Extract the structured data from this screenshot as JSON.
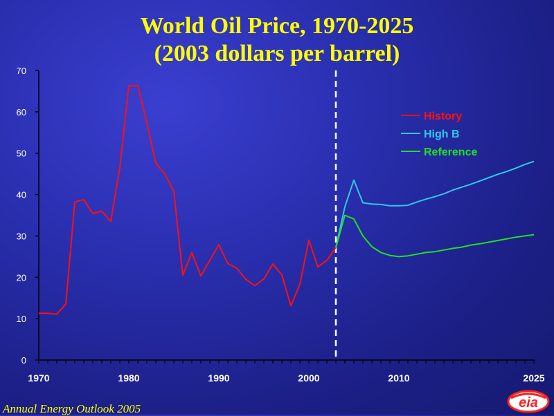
{
  "chart_data": {
    "type": "line",
    "title": "World Oil Price, 1970-2025",
    "subtitle": "(2003 dollars per barrel)",
    "xlabel": "",
    "ylabel": "",
    "xlim": [
      1970,
      2025
    ],
    "ylim": [
      0,
      70
    ],
    "x_ticks": [
      1970,
      1980,
      1990,
      2000,
      2010,
      2025
    ],
    "y_ticks": [
      0,
      10,
      20,
      30,
      40,
      50,
      60,
      70
    ],
    "divider_year": 2003,
    "legend_position": "upper-right",
    "series": [
      {
        "name": "History",
        "color": "#ff1010",
        "x": [
          1970,
          1971,
          1972,
          1973,
          1974,
          1975,
          1976,
          1977,
          1978,
          1979,
          1980,
          1981,
          1982,
          1983,
          1984,
          1985,
          1986,
          1987,
          1988,
          1989,
          1990,
          1991,
          1992,
          1993,
          1994,
          1995,
          1996,
          1997,
          1998,
          1999,
          2000,
          2001,
          2002,
          2003
        ],
        "values": [
          11.3,
          11.3,
          11.1,
          13.5,
          38.2,
          38.8,
          35.4,
          36,
          33.5,
          46.5,
          66.3,
          66.3,
          57.4,
          47.6,
          45,
          40.8,
          20.5,
          26,
          20.3,
          24.1,
          27.9,
          23.3,
          22.2,
          19.5,
          18,
          19.6,
          23.2,
          20.6,
          13.1,
          18.3,
          29,
          22.5,
          24.1,
          27.2
        ]
      },
      {
        "name": "High B",
        "color": "#30c8e8",
        "x": [
          2003,
          2004,
          2005,
          2006,
          2007,
          2008,
          2009,
          2010,
          2011,
          2012,
          2013,
          2014,
          2015,
          2016,
          2017,
          2018,
          2019,
          2020,
          2021,
          2022,
          2023,
          2024,
          2025
        ],
        "values": [
          27.2,
          37,
          43.5,
          38,
          37.7,
          37.6,
          37.3,
          37.3,
          37.4,
          38.2,
          38.9,
          39.5,
          40.2,
          41.1,
          41.8,
          42.5,
          43.3,
          44.1,
          44.9,
          45.6,
          46.4,
          47.3,
          48
        ]
      },
      {
        "name": "Reference",
        "color": "#20e020",
        "x": [
          2003,
          2004,
          2005,
          2006,
          2007,
          2008,
          2009,
          2010,
          2011,
          2012,
          2013,
          2014,
          2015,
          2016,
          2017,
          2018,
          2019,
          2020,
          2021,
          2022,
          2023,
          2024,
          2025
        ],
        "values": [
          27.2,
          35,
          34.1,
          30,
          27.4,
          26,
          25.3,
          25,
          25.2,
          25.6,
          26,
          26.2,
          26.6,
          27,
          27.3,
          27.8,
          28.1,
          28.5,
          28.9,
          29.3,
          29.7,
          30,
          30.3
        ]
      }
    ]
  },
  "footer": "Annual Energy Outlook 2005",
  "logo_text": "eia"
}
